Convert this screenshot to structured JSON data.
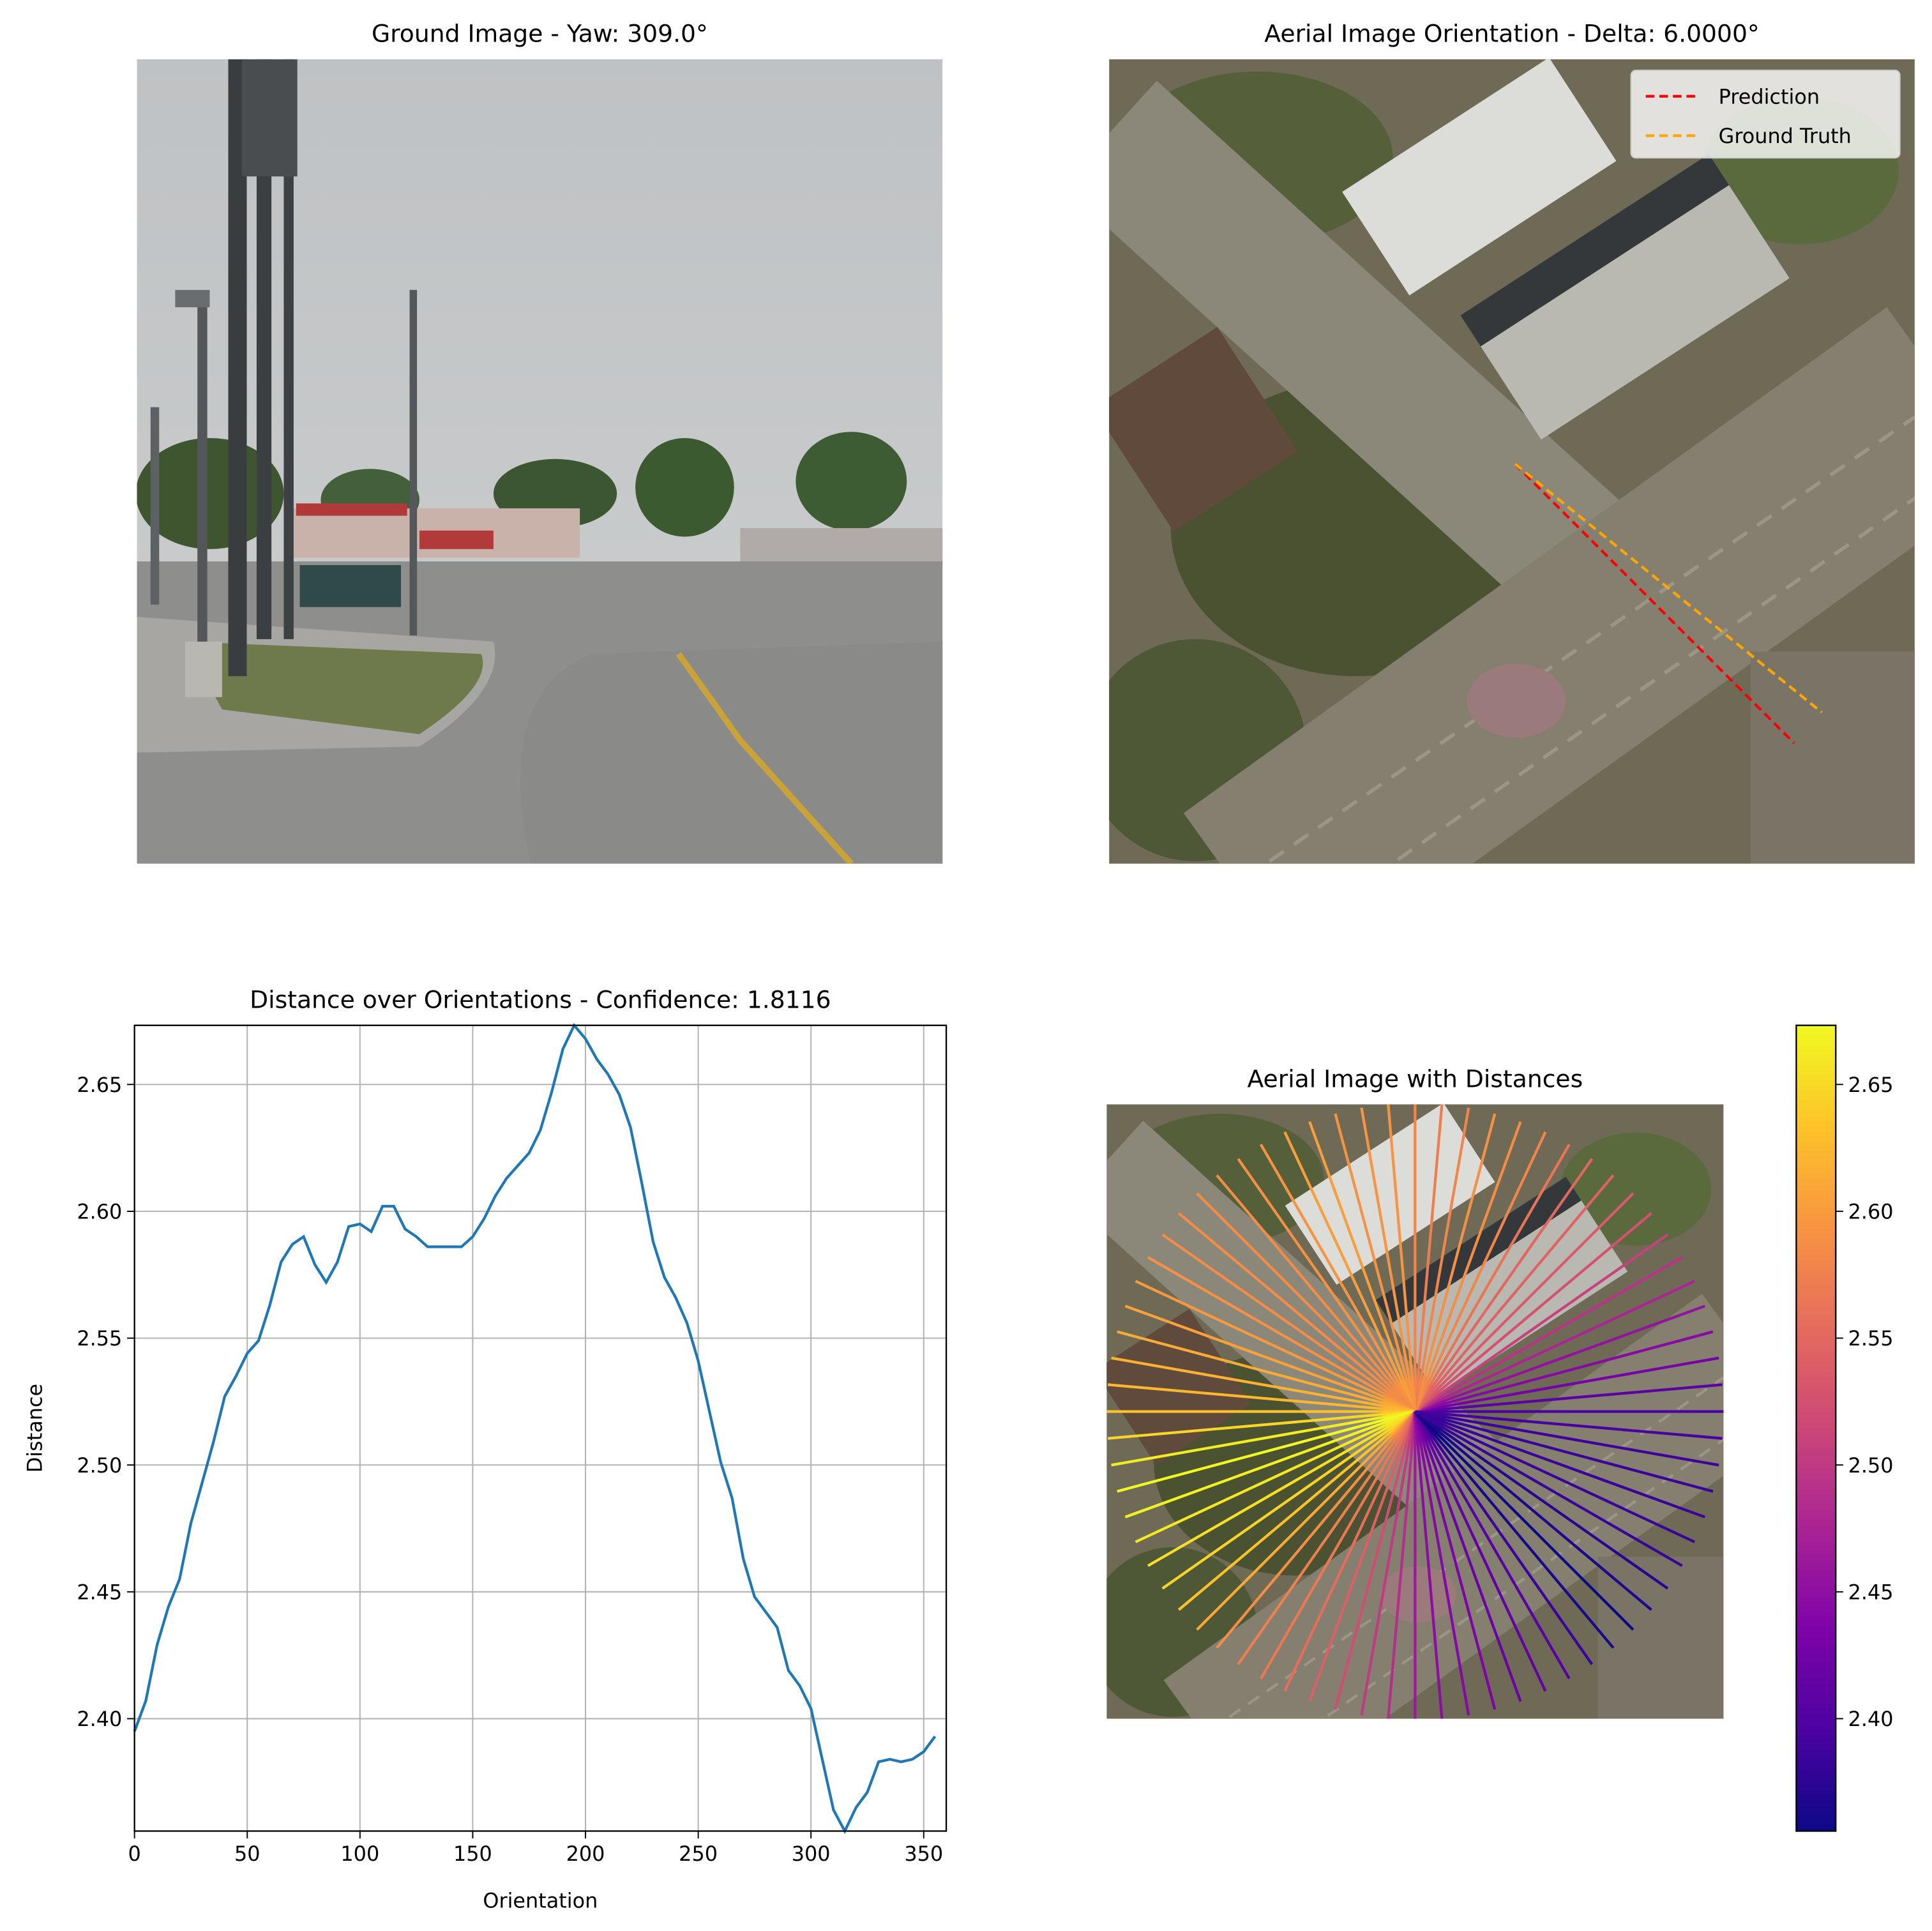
{
  "chart_data": [
    {
      "type": "image",
      "title": "Ground Image - Yaw: 309.0°"
    },
    {
      "type": "orientation",
      "title": "Aerial Image Orientation - Delta: 6.0000°",
      "legend": "upper right",
      "series": [
        {
          "name": "Prediction",
          "color": "#ff0000",
          "angle": 315
        },
        {
          "name": "Ground Truth",
          "color": "#ffa500",
          "angle": 321
        }
      ]
    },
    {
      "type": "line",
      "title": "Distance over Orientations - Confidence: 1.8116",
      "x_label": "Orientation",
      "y_label": "Distance",
      "x": [
        0,
        5,
        10,
        15,
        20,
        25,
        30,
        35,
        40,
        45,
        50,
        55,
        60,
        65,
        70,
        75,
        80,
        85,
        90,
        95,
        100,
        105,
        110,
        115,
        120,
        125,
        130,
        135,
        140,
        145,
        150,
        155,
        160,
        165,
        170,
        175,
        180,
        185,
        190,
        195,
        200,
        205,
        210,
        215,
        220,
        225,
        230,
        235,
        240,
        245,
        250,
        255,
        260,
        265,
        270,
        275,
        280,
        285,
        290,
        295,
        300,
        305,
        310,
        315,
        320,
        325,
        330,
        335,
        340,
        345,
        350,
        355
      ],
      "values": [
        2.395,
        2.407,
        2.429,
        2.444,
        2.455,
        2.477,
        2.493,
        2.509,
        2.527,
        2.535,
        2.544,
        2.549,
        2.563,
        2.58,
        2.587,
        2.59,
        2.579,
        2.572,
        2.58,
        2.594,
        2.595,
        2.592,
        2.602,
        2.602,
        2.593,
        2.59,
        2.586,
        2.586,
        2.586,
        2.586,
        2.59,
        2.597,
        2.606,
        2.613,
        2.618,
        2.623,
        2.632,
        2.647,
        2.664,
        2.6733,
        2.668,
        2.66,
        2.654,
        2.646,
        2.633,
        2.611,
        2.588,
        2.574,
        2.566,
        2.556,
        2.541,
        2.521,
        2.501,
        2.487,
        2.463,
        2.448,
        2.442,
        2.436,
        2.419,
        2.413,
        2.404,
        2.384,
        2.364,
        2.3557,
        2.365,
        2.371,
        2.383,
        2.384,
        2.383,
        2.384,
        2.387,
        2.393
      ],
      "color": "#1f77b4",
      "xlim": [
        0,
        360
      ],
      "ylim": [
        2.3557,
        2.6733
      ],
      "xticks": [
        0,
        50,
        100,
        150,
        200,
        250,
        300,
        350
      ],
      "yticks": [
        {
          "value": 2.4,
          "label": "2.40"
        },
        {
          "value": 2.45,
          "label": "2.45"
        },
        {
          "value": 2.5,
          "label": "2.50"
        },
        {
          "value": 2.55,
          "label": "2.55"
        },
        {
          "value": 2.6,
          "label": "2.60"
        },
        {
          "value": 2.65,
          "label": "2.65"
        }
      ],
      "grid": true
    },
    {
      "type": "rays",
      "title": "Aerial Image with Distances",
      "colormap": "plasma",
      "clim": [
        2.3557,
        2.6733
      ],
      "cticks": [
        {
          "value": 2.4,
          "label": "2.40"
        },
        {
          "value": 2.45,
          "label": "2.45"
        },
        {
          "value": 2.5,
          "label": "2.50"
        },
        {
          "value": 2.55,
          "label": "2.55"
        },
        {
          "value": 2.6,
          "label": "2.60"
        },
        {
          "value": 2.65,
          "label": "2.65"
        }
      ]
    }
  ]
}
